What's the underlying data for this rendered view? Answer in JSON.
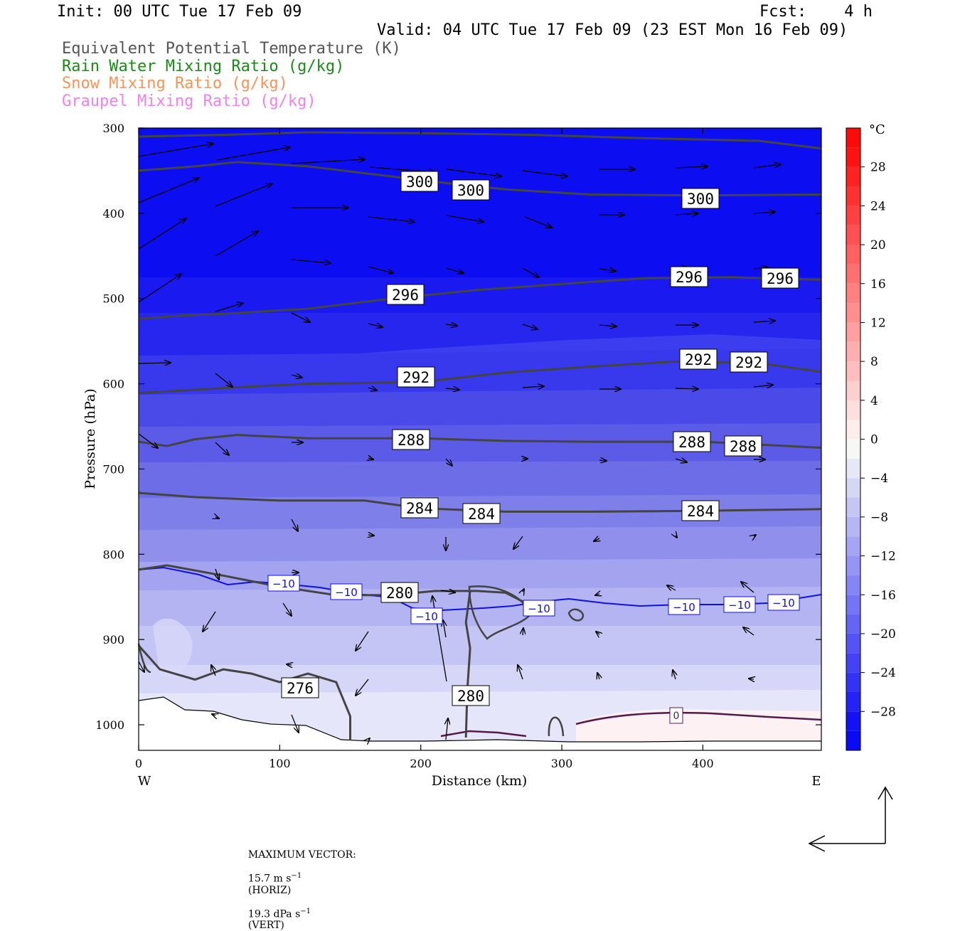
{
  "header": {
    "init": "Init: 00 UTC Tue 17 Feb 09",
    "fcst": "Fcst:    4 h",
    "valid": "Valid: 04 UTC Tue 17 Feb 09 (23 EST Mon 16 Feb 09)"
  },
  "fields": [
    {
      "label": "Equivalent Potential Temperature (K)",
      "color": "#555555"
    },
    {
      "label": "Rain Water Mixing Ratio (g/kg)",
      "color": "#1a8a1a"
    },
    {
      "label": "Snow Mixing Ratio (g/kg)",
      "color": "#f2945c"
    },
    {
      "label": "Graupel Mixing Ratio (g/kg)",
      "color": "#ee82ee"
    }
  ],
  "chart_data": {
    "type": "cross-section",
    "xlabel": "Distance (km)",
    "ylabel": "Pressure (hPa)",
    "x_ticks": [
      0,
      100,
      200,
      300,
      400
    ],
    "xlim": [
      0,
      484
    ],
    "y_ticks": [
      300,
      400,
      500,
      600,
      700,
      800,
      900,
      1000
    ],
    "ylim": [
      300,
      1030
    ],
    "west_label": "W",
    "east_label": "E",
    "colorbar": {
      "unit": "°C",
      "levels": [
        -32,
        -30,
        -28,
        -26,
        -24,
        -22,
        -20,
        -18,
        -16,
        -14,
        -12,
        -10,
        -8,
        -6,
        -4,
        -2,
        0,
        2,
        4,
        6,
        8,
        10,
        12,
        14,
        16,
        18,
        20,
        22,
        24,
        26,
        28,
        30,
        32
      ],
      "tick_labels": [
        "28",
        "24",
        "20",
        "16",
        "12",
        "8",
        "4",
        "0",
        "−4",
        "−8",
        "−12",
        "−16",
        "−20",
        "−24",
        "−28"
      ],
      "tick_values": [
        28,
        24,
        20,
        16,
        12,
        8,
        4,
        0,
        -4,
        -8,
        -12,
        -16,
        -20,
        -24,
        -28
      ]
    },
    "theta_e_contours": [
      {
        "value": 300,
        "label": "300",
        "points": [
          [
            0,
            310
          ],
          [
            60,
            308
          ],
          [
            120,
            305
          ],
          [
            200,
            306
          ],
          [
            280,
            308
          ],
          [
            360,
            312
          ],
          [
            440,
            315
          ],
          [
            484,
            324
          ]
        ]
      },
      {
        "value": 300,
        "label": "300",
        "points": [
          [
            0,
            350
          ],
          [
            40,
            345
          ],
          [
            70,
            340
          ],
          [
            120,
            345
          ],
          [
            180,
            357
          ],
          [
            220,
            365
          ],
          [
            260,
            372
          ],
          [
            320,
            378
          ],
          [
            400,
            379
          ],
          [
            484,
            378
          ]
        ]
      },
      {
        "value": 296,
        "label": "296",
        "points": [
          [
            0,
            524
          ],
          [
            30,
            520
          ],
          [
            60,
            518
          ],
          [
            120,
            512
          ],
          [
            180,
            500
          ],
          [
            240,
            490
          ],
          [
            300,
            483
          ],
          [
            360,
            476
          ],
          [
            420,
            475
          ],
          [
            484,
            478
          ]
        ]
      },
      {
        "value": 292,
        "label": "292",
        "points": [
          [
            0,
            611
          ],
          [
            60,
            605
          ],
          [
            120,
            600
          ],
          [
            200,
            598
          ],
          [
            260,
            587
          ],
          [
            320,
            580
          ],
          [
            380,
            574
          ],
          [
            440,
            576
          ],
          [
            484,
            586
          ]
        ]
      },
      {
        "value": 288,
        "label": "288",
        "points": [
          [
            0,
            668
          ],
          [
            20,
            673
          ],
          [
            40,
            665
          ],
          [
            70,
            660
          ],
          [
            120,
            664
          ],
          [
            200,
            664
          ],
          [
            260,
            667
          ],
          [
            320,
            668
          ],
          [
            400,
            668
          ],
          [
            484,
            675
          ]
        ]
      },
      {
        "value": 284,
        "label": "284",
        "points": [
          [
            0,
            728
          ],
          [
            40,
            733
          ],
          [
            100,
            737
          ],
          [
            160,
            737
          ],
          [
            200,
            746
          ],
          [
            260,
            750
          ],
          [
            320,
            750
          ],
          [
            400,
            749
          ],
          [
            484,
            747
          ]
        ]
      },
      {
        "value": 280,
        "label": "280",
        "points": [
          [
            0,
            818
          ],
          [
            20,
            813
          ],
          [
            60,
            825
          ],
          [
            100,
            838
          ],
          [
            140,
            848
          ],
          [
            180,
            848
          ],
          [
            210,
            843
          ],
          [
            240,
            843
          ],
          [
            260,
            845
          ],
          [
            280,
            862
          ]
        ]
      },
      {
        "value": 280,
        "label": "280",
        "points": [
          [
            235,
            843
          ],
          [
            232,
            880
          ],
          [
            235,
            910
          ],
          [
            233,
            960
          ],
          [
            232,
            1015
          ]
        ]
      },
      {
        "value": 276,
        "label": "276",
        "points": [
          [
            0,
            907
          ],
          [
            15,
            935
          ],
          [
            40,
            947
          ],
          [
            60,
            935
          ],
          [
            80,
            940
          ],
          [
            100,
            950
          ],
          [
            120,
            940
          ],
          [
            140,
            950
          ],
          [
            150,
            990
          ],
          [
            150,
            1018
          ]
        ]
      }
    ],
    "isotherm_labels": [
      {
        "value": -10,
        "label": "−10"
      },
      {
        "value": 0,
        "label": "0"
      }
    ],
    "footer": {
      "max_vector_label": "MAXIMUM VECTOR:",
      "horiz": "15.7 m s",
      "horiz_exp": "−1",
      "horiz_tag": "(HORIZ)",
      "vert": "19.3 dPa s",
      "vert_exp": "−1",
      "vert_tag": "(VERT)"
    }
  }
}
